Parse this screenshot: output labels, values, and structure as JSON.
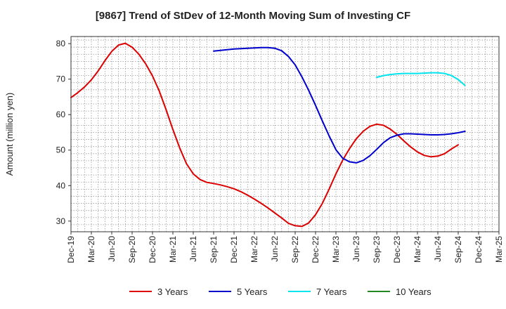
{
  "chart_data": {
    "type": "line",
    "title": "[9867]  Trend of StDev of 12-Month Moving Sum of Investing CF",
    "xlabel": "",
    "ylabel": "Amount (million yen)",
    "ylim": [
      27,
      82
    ],
    "yticks": [
      30,
      40,
      50,
      60,
      70,
      80
    ],
    "grid": true,
    "legend_position": "bottom",
    "x_tick_labels": [
      "Dec-19",
      "Mar-20",
      "Jun-20",
      "Sep-20",
      "Dec-20",
      "Mar-21",
      "Jun-21",
      "Sep-21",
      "Dec-21",
      "Mar-22",
      "Jun-22",
      "Sep-22",
      "Dec-22",
      "Mar-23",
      "Jun-23",
      "Sep-23",
      "Dec-23",
      "Mar-24",
      "Jun-24",
      "Sep-24",
      "Dec-24",
      "Mar-25"
    ],
    "series": [
      {
        "name": "3 Years",
        "color": "#dd0000",
        "start_index": 0,
        "values": [
          64.8,
          66.2,
          67.8,
          69.8,
          72.3,
          75.2,
          77.8,
          79.6,
          80.1,
          79.0,
          77.0,
          74.3,
          70.9,
          66.6,
          61.4,
          55.8,
          50.6,
          46.2,
          43.3,
          41.7,
          40.9,
          40.6,
          40.2,
          39.7,
          39.1,
          38.3,
          37.3,
          36.2,
          35.0,
          33.7,
          32.3,
          30.9,
          29.4,
          28.7,
          28.5,
          29.5,
          31.8,
          35.0,
          39.0,
          43.3,
          47.2,
          50.4,
          53.2,
          55.3,
          56.7,
          57.3,
          57.0,
          55.9,
          54.4,
          52.6,
          50.9,
          49.5,
          48.5,
          48.1,
          48.3,
          49.0,
          50.3,
          51.5
        ]
      },
      {
        "name": "5 Years",
        "color": "#0000cc",
        "start_index": 21,
        "values": [
          77.9,
          78.1,
          78.3,
          78.5,
          78.6,
          78.7,
          78.8,
          78.9,
          78.9,
          78.7,
          78.0,
          76.4,
          74.0,
          70.6,
          66.8,
          62.6,
          58.2,
          54.0,
          50.1,
          47.7,
          46.7,
          46.4,
          47.1,
          48.4,
          50.2,
          52.1,
          53.5,
          54.2,
          54.6,
          54.6,
          54.5,
          54.4,
          54.3,
          54.3,
          54.4,
          54.6,
          54.9,
          55.3
        ]
      },
      {
        "name": "7 Years",
        "color": "#00e5ee",
        "start_index": 45,
        "values": [
          70.5,
          71.0,
          71.3,
          71.5,
          71.6,
          71.6,
          71.6,
          71.7,
          71.8,
          71.8,
          71.6,
          71.0,
          69.9,
          68.2
        ]
      },
      {
        "name": "10 Years",
        "color": "#228822",
        "start_index": 0,
        "values": []
      }
    ],
    "x_points_per_tick": 3
  }
}
